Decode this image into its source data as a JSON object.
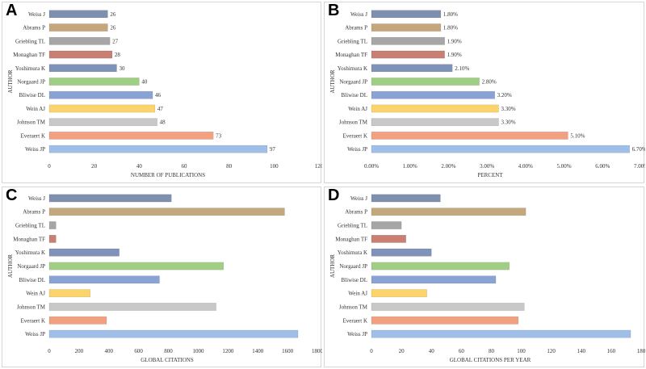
{
  "authors": [
    "Weiss J",
    "Abrams P",
    "Griebling TL",
    "Monaghan TF",
    "Yoshimura K",
    "Norgaard JP",
    "Bliwise DL",
    "Wein AJ",
    "Johnson TM",
    "Everaert K",
    "Weiss JP"
  ],
  "bar_colors": [
    "#7f8fae",
    "#c5a77c",
    "#a6a6a6",
    "#c97f72",
    "#7f93b8",
    "#9fce84",
    "#8aa3d7",
    "#fcd46a",
    "#c8c8c8",
    "#f2a07f",
    "#9fbfe8"
  ],
  "chart_data": [
    {
      "panel": "A",
      "type": "bar",
      "orientation": "horizontal",
      "categories": [
        "Weiss J",
        "Abrams P",
        "Griebling TL",
        "Monaghan TF",
        "Yoshimura K",
        "Norgaard JP",
        "Bliwise DL",
        "Wein AJ",
        "Johnson TM",
        "Everaert K",
        "Weiss JP"
      ],
      "values": [
        26,
        26,
        27,
        28,
        30,
        40,
        46,
        47,
        48,
        73,
        97
      ],
      "data_labels": [
        "26",
        "26",
        "27",
        "28",
        "30",
        "40",
        "46",
        "47",
        "48",
        "73",
        "97"
      ],
      "xlabel": "NUMBER OF PUBLICATIONS",
      "ylabel": "AUTHOR",
      "xlim": [
        0,
        120
      ],
      "ticks": [
        0,
        20,
        40,
        60,
        80,
        100,
        120
      ],
      "tick_labels": [
        "0",
        "20",
        "40",
        "60",
        "80",
        "100",
        "120"
      ]
    },
    {
      "panel": "B",
      "type": "bar",
      "orientation": "horizontal",
      "categories": [
        "Weiss J",
        "Abrams P",
        "Griebling TL",
        "Monaghan TF",
        "Yoshimura K",
        "Norgaard JP",
        "Bliwise DL",
        "Wein AJ",
        "Johnson TM",
        "Everaert K",
        "Weiss JP"
      ],
      "values": [
        1.8,
        1.8,
        1.9,
        1.9,
        2.1,
        2.8,
        3.2,
        3.3,
        3.3,
        5.1,
        6.7
      ],
      "data_labels": [
        "1.80%",
        "1.80%",
        "1.90%",
        "1.90%",
        "2.10%",
        "2.80%",
        "3.20%",
        "3.30%",
        "3.30%",
        "5.10%",
        "6.70%"
      ],
      "xlabel": "PERCENT",
      "ylabel": "AUTHOR",
      "xlim": [
        0,
        7
      ],
      "ticks": [
        0,
        1,
        2,
        3,
        4,
        5,
        6,
        7
      ],
      "tick_labels": [
        "0.00%",
        "1.00%",
        "2.00%",
        "3.00%",
        "4.00%",
        "5.00%",
        "6.00%",
        "7.00%"
      ]
    },
    {
      "panel": "C",
      "type": "bar",
      "orientation": "horizontal",
      "categories": [
        "Weiss J",
        "Abrams P",
        "Griebling TL",
        "Monaghan TF",
        "Yoshimura K",
        "Norgaard JP",
        "Bliwise DL",
        "Wein AJ",
        "Johnson TM",
        "Everaert K",
        "Weiss JP"
      ],
      "values": [
        820,
        1580,
        45,
        45,
        470,
        1170,
        740,
        275,
        1120,
        385,
        1670
      ],
      "xlabel": "GLOBAL CITATIONS",
      "ylabel": "AUTHOR",
      "xlim": [
        0,
        1800
      ],
      "ticks": [
        0,
        200,
        400,
        600,
        800,
        1000,
        1200,
        1400,
        1600,
        1800
      ],
      "tick_labels": [
        "0",
        "200",
        "400",
        "600",
        "800",
        "1000",
        "1200",
        "1400",
        "1600",
        "1800"
      ]
    },
    {
      "panel": "D",
      "type": "bar",
      "orientation": "horizontal",
      "categories": [
        "Weiss J",
        "Abrams P",
        "Griebling TL",
        "Monaghan TF",
        "Yoshimura K",
        "Norgaard JP",
        "Bliwise DL",
        "Wein AJ",
        "Johnson TM",
        "Everaert K",
        "Weiss JP"
      ],
      "values": [
        46,
        103,
        20,
        23,
        40,
        92,
        83,
        37,
        102,
        98,
        173
      ],
      "xlabel": "GLOBAL CITATIONS PER YEAR",
      "ylabel": "AUTHOR",
      "xlim": [
        0,
        180
      ],
      "ticks": [
        0,
        20,
        40,
        60,
        80,
        100,
        120,
        140,
        160,
        180
      ],
      "tick_labels": [
        "0",
        "20",
        "40",
        "60",
        "80",
        "100",
        "120",
        "140",
        "160",
        "180"
      ]
    }
  ]
}
